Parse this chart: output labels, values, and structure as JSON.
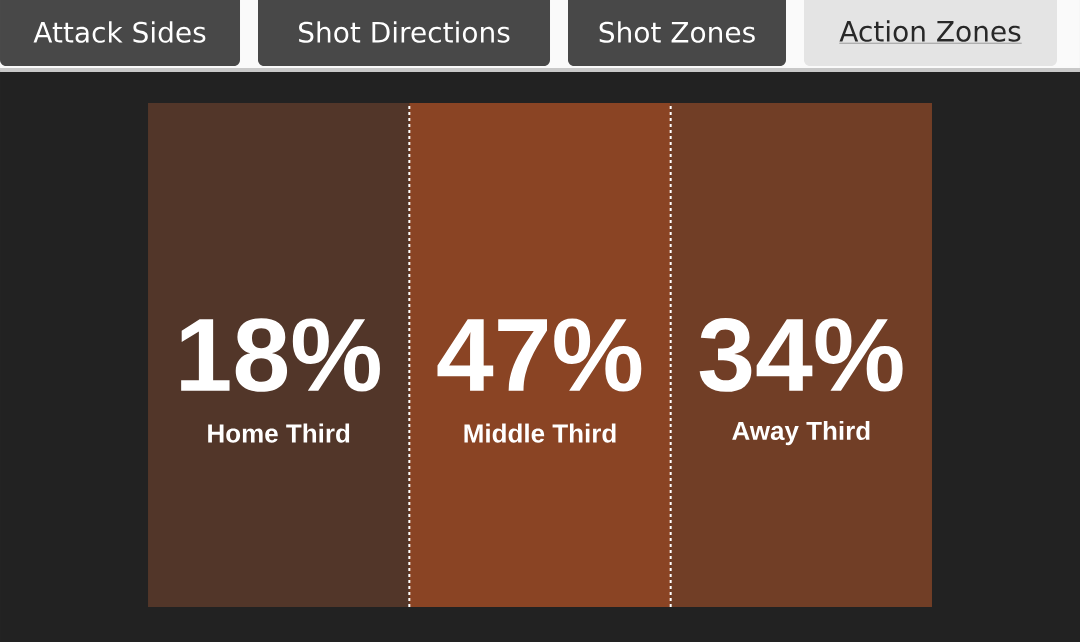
{
  "chart_data": {
    "type": "other",
    "title": "Action Zones",
    "annotations": [
      "Attack Sides",
      "Shot Directions",
      "Shot Zones"
    ],
    "categories": [
      "Home Third",
      "Middle Third",
      "Away Third"
    ],
    "values": [
      18,
      47,
      34
    ],
    "value_labels": [
      "18%",
      "47%",
      "34%"
    ]
  }
}
